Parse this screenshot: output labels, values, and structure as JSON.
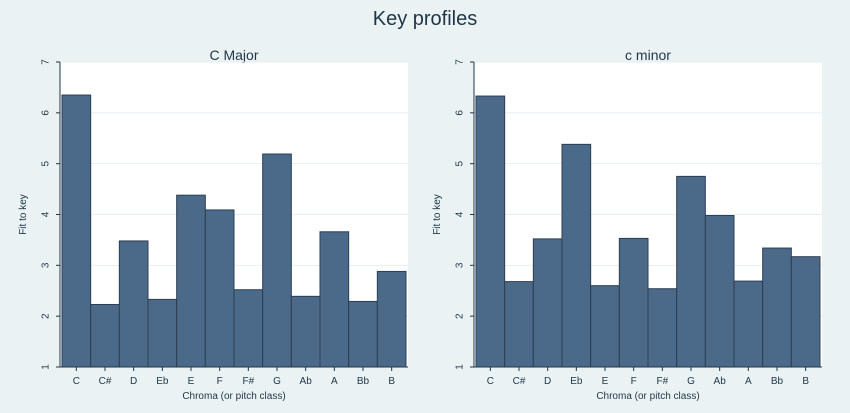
{
  "figure": {
    "title": "Key profiles",
    "colors": {
      "background": "#eaf2f3",
      "plot_area": "#ffffff",
      "bar_fill": "#4b6a8a",
      "bar_edge": "#2c3e52",
      "text": "#1f3648"
    }
  },
  "chart_data": [
    {
      "type": "bar",
      "title": "C Major",
      "xlabel": "Chroma (or pitch class)",
      "ylabel": "Fit to key",
      "categories": [
        "C",
        "C#",
        "D",
        "Eb",
        "E",
        "F",
        "F#",
        "G",
        "Ab",
        "A",
        "Bb",
        "B"
      ],
      "values": [
        6.35,
        2.23,
        3.48,
        2.33,
        4.38,
        4.09,
        2.52,
        5.19,
        2.39,
        3.66,
        2.29,
        2.88
      ],
      "yticks": [
        1,
        2,
        3,
        4,
        5,
        6,
        7
      ],
      "ylim": [
        1,
        7
      ],
      "grid": true
    },
    {
      "type": "bar",
      "title": "c minor",
      "xlabel": "Chroma (or pitch class)",
      "ylabel": "Fit to key",
      "categories": [
        "C",
        "C#",
        "D",
        "Eb",
        "E",
        "F",
        "F#",
        "G",
        "Ab",
        "A",
        "Bb",
        "B"
      ],
      "values": [
        6.33,
        2.68,
        3.52,
        5.38,
        2.6,
        3.53,
        2.54,
        4.75,
        3.98,
        2.69,
        3.34,
        3.17
      ],
      "yticks": [
        1,
        2,
        3,
        4,
        5,
        6,
        7
      ],
      "ylim": [
        1,
        7
      ],
      "grid": true
    }
  ]
}
